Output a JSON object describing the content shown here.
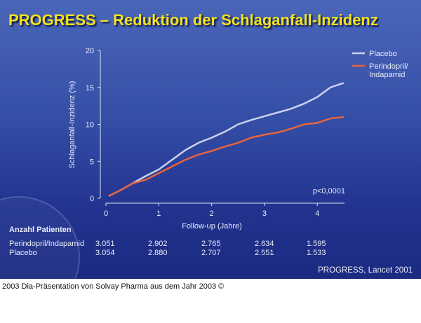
{
  "title": "PROGRESS – Reduktion der Schlaganfall-Inzidenz",
  "chart_data": {
    "type": "line",
    "xlabel": "Follow-up (Jahre)",
    "ylabel": "Schlaganfall-Inzidenz (%)",
    "xlim": [
      0,
      4.5
    ],
    "ylim": [
      0,
      20
    ],
    "xticks": [
      "0",
      "1",
      "2",
      "3",
      "4"
    ],
    "yticks": [
      "0",
      "5",
      "10",
      "15",
      "20"
    ],
    "grid": false,
    "legend_placement": "top-right",
    "annotation": "p<0,0001",
    "series": [
      {
        "name": "Placebo",
        "color": "#c9d2ee",
        "x": [
          0.05,
          0.25,
          0.5,
          0.75,
          1,
          1.25,
          1.5,
          1.75,
          2,
          2.25,
          2.5,
          2.75,
          3,
          3.25,
          3.5,
          3.75,
          4,
          4.25,
          4.5
        ],
        "y": [
          0.3,
          1.0,
          2.0,
          3.0,
          3.9,
          5.2,
          6.5,
          7.5,
          8.2,
          9.0,
          10.0,
          10.6,
          11.1,
          11.6,
          12.1,
          12.8,
          13.7,
          15.0,
          15.6
        ]
      },
      {
        "name": "Perindopril/ Indapamid",
        "color": "#e8643c",
        "x": [
          0.05,
          0.25,
          0.5,
          0.75,
          1,
          1.25,
          1.5,
          1.75,
          2,
          2.25,
          2.5,
          2.75,
          3,
          3.25,
          3.5,
          3.75,
          4,
          4.25,
          4.5
        ],
        "y": [
          0.3,
          1.0,
          2.0,
          2.5,
          3.4,
          4.3,
          5.2,
          5.9,
          6.4,
          7.0,
          7.5,
          8.2,
          8.6,
          8.9,
          9.4,
          10.0,
          10.2,
          10.8,
          11.0
        ]
      }
    ]
  },
  "legend": {
    "placebo": "Placebo",
    "treatment_line1": "Perindopril/",
    "treatment_line2": "Indapamid"
  },
  "patients": {
    "heading": "Anzahl Patienten",
    "rows": [
      {
        "label": "Perindopril/Indapamid",
        "values": [
          "3.051",
          "2.902",
          "2.765",
          "2.634",
          "1.595"
        ]
      },
      {
        "label": "Placebo",
        "values": [
          "3.054",
          "2.880",
          "2.707",
          "2.551",
          "1.533"
        ]
      }
    ]
  },
  "source": "PROGRESS, Lancet 2001",
  "caption": "2003 Dia-Präsentation von Solvay Pharma aus dem Jahr 2003 ©"
}
